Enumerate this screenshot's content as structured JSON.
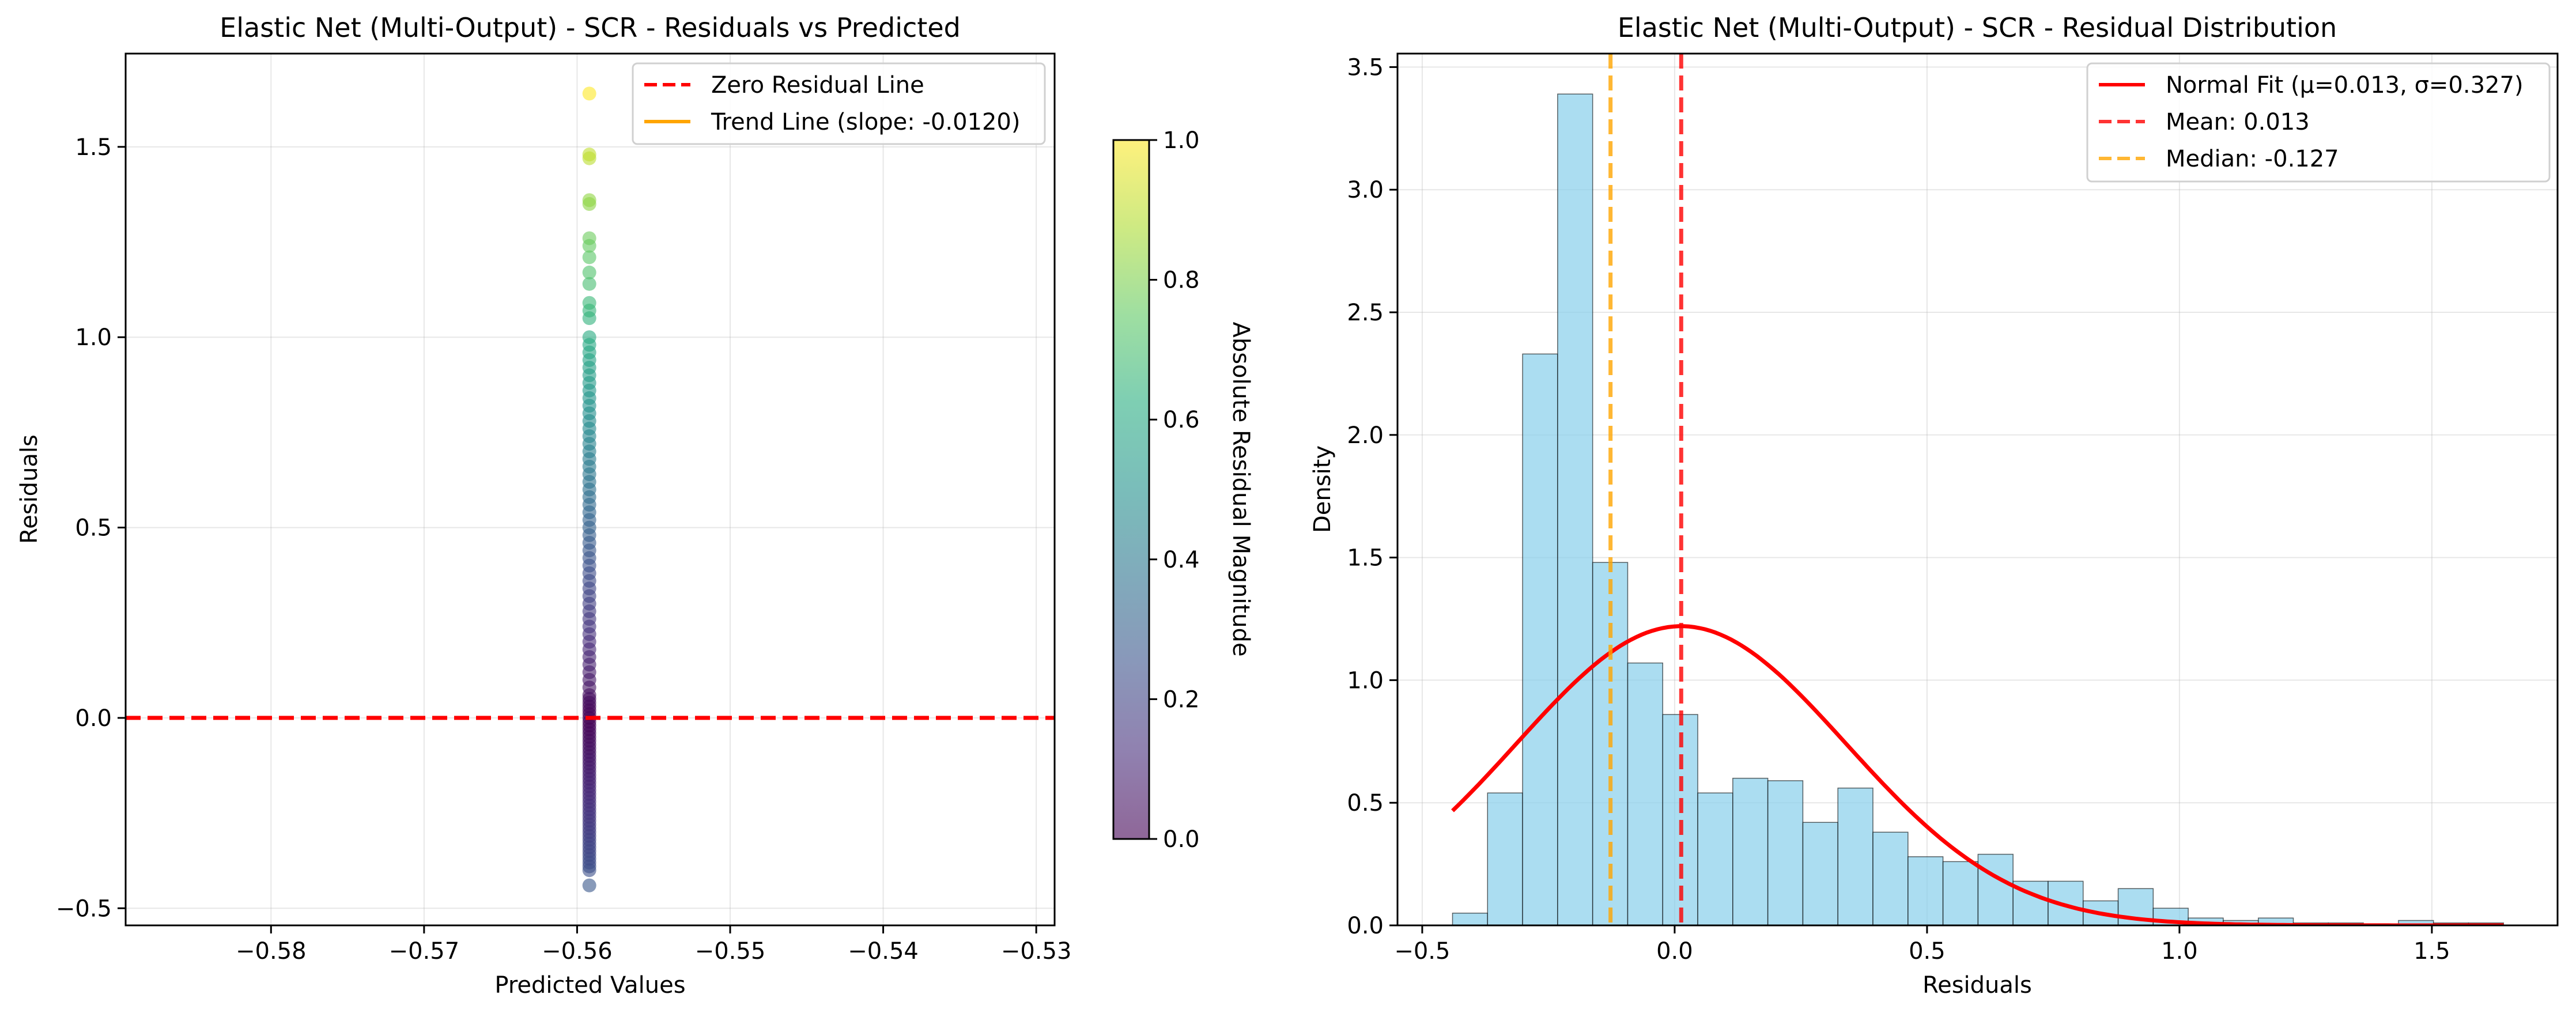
{
  "chart_data": [
    {
      "type": "scatter",
      "title": "Elastic Net (Multi-Output) - SCR - Residuals vs Predicted",
      "xlabel": "Predicted Values",
      "ylabel": "Residuals",
      "xlim": [
        -0.5895,
        -0.5288
      ],
      "ylim": [
        -0.545,
        1.745
      ],
      "xticks": [
        -0.58,
        -0.57,
        -0.56,
        -0.55,
        -0.54,
        -0.53
      ],
      "xtick_labels": [
        "−0.58",
        "−0.57",
        "−0.56",
        "−0.55",
        "−0.54",
        "−0.53"
      ],
      "yticks": [
        -0.5,
        0.0,
        0.5,
        1.0,
        1.5
      ],
      "ytick_labels": [
        "−0.5",
        "0.0",
        "0.5",
        "1.0",
        "1.5"
      ],
      "grid": true,
      "legend_position": "top-right",
      "points": {
        "x": -0.5592,
        "residuals": [
          -0.44,
          -0.4,
          -0.39,
          -0.38,
          -0.37,
          -0.36,
          -0.35,
          -0.34,
          -0.33,
          -0.32,
          -0.31,
          -0.3,
          -0.29,
          -0.28,
          -0.27,
          -0.26,
          -0.25,
          -0.24,
          -0.23,
          -0.22,
          -0.21,
          -0.2,
          -0.19,
          -0.18,
          -0.17,
          -0.16,
          -0.15,
          -0.14,
          -0.13,
          -0.12,
          -0.11,
          -0.1,
          -0.09,
          -0.08,
          -0.07,
          -0.06,
          -0.05,
          -0.04,
          -0.03,
          -0.02,
          -0.01,
          0.0,
          0.01,
          0.02,
          0.03,
          0.04,
          0.05,
          0.06,
          0.08,
          0.1,
          0.12,
          0.14,
          0.16,
          0.18,
          0.2,
          0.22,
          0.24,
          0.26,
          0.28,
          0.3,
          0.32,
          0.34,
          0.36,
          0.38,
          0.4,
          0.42,
          0.44,
          0.46,
          0.48,
          0.5,
          0.52,
          0.54,
          0.56,
          0.58,
          0.6,
          0.62,
          0.64,
          0.66,
          0.68,
          0.7,
          0.72,
          0.74,
          0.76,
          0.78,
          0.8,
          0.82,
          0.84,
          0.86,
          0.88,
          0.9,
          0.92,
          0.94,
          0.96,
          0.98,
          1.0,
          1.05,
          1.07,
          1.09,
          1.14,
          1.17,
          1.21,
          1.24,
          1.26,
          1.35,
          1.36,
          1.47,
          1.48,
          1.64
        ],
        "color_scale": "viridis",
        "alpha": 0.6
      },
      "series": [
        {
          "name": "Zero Residual Line",
          "style": "dashed",
          "color": "#ff0000",
          "y": 0.0
        },
        {
          "name": "Trend Line (slope: -0.0120)",
          "style": "solid",
          "color": "#ffa500"
        }
      ],
      "colorbar": {
        "label": "Absolute Residual Magnitude",
        "min": 0.0,
        "max": 1.0,
        "ticks": [
          0.0,
          0.2,
          0.4,
          0.6,
          0.8,
          1.0
        ],
        "tick_labels": [
          "0.0",
          "0.2",
          "0.4",
          "0.6",
          "0.8",
          "1.0"
        ]
      }
    },
    {
      "type": "bar",
      "subtype": "histogram",
      "title": "Elastic Net (Multi-Output) - SCR - Residual Distribution",
      "xlabel": "Residuals",
      "ylabel": "Density",
      "xlim": [
        -0.549,
        1.749
      ],
      "ylim": [
        0.0,
        3.555
      ],
      "xticks": [
        -0.5,
        0.0,
        0.5,
        1.0,
        1.5
      ],
      "xtick_labels": [
        "−0.5",
        "0.0",
        "0.5",
        "1.0",
        "1.5"
      ],
      "yticks": [
        0.0,
        0.5,
        1.0,
        1.5,
        2.0,
        2.5,
        3.0,
        3.5
      ],
      "ytick_labels": [
        "0.0",
        "0.5",
        "1.0",
        "1.5",
        "2.0",
        "2.5",
        "3.0",
        "3.5"
      ],
      "grid": true,
      "legend_position": "top-right",
      "bins": {
        "start": -0.44,
        "width": 0.0694,
        "density": [
          0.05,
          0.54,
          2.33,
          3.39,
          1.48,
          1.07,
          0.86,
          0.54,
          0.6,
          0.59,
          0.42,
          0.56,
          0.38,
          0.28,
          0.26,
          0.29,
          0.18,
          0.18,
          0.1,
          0.15,
          0.07,
          0.03,
          0.02,
          0.03,
          0.01,
          0.01,
          0.0,
          0.02,
          0.01,
          0.01
        ],
        "color": "#87ceeb"
      },
      "series": [
        {
          "name": "Normal Fit (μ=0.013, σ=0.327)",
          "style": "solid",
          "color": "#ff0000",
          "mu": 0.013,
          "sigma": 0.327
        },
        {
          "name": "Mean: 0.013",
          "style": "dashed",
          "color": "#ff0000",
          "x": 0.013
        },
        {
          "name": "Median: -0.127",
          "style": "dashed",
          "color": "#ffa500",
          "x": -0.127
        }
      ]
    }
  ]
}
